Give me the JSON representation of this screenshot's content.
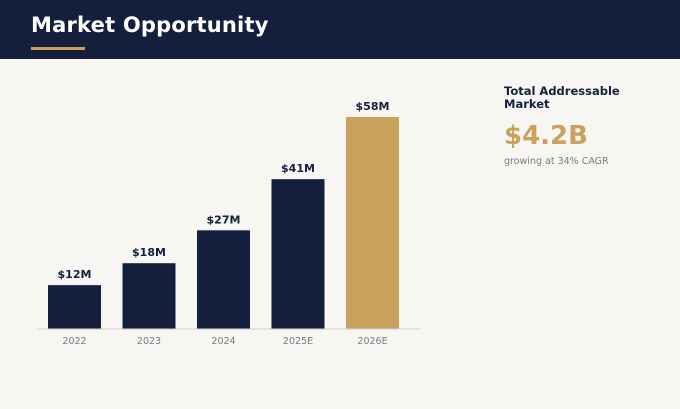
{
  "header": {
    "title": "Market Opportunity"
  },
  "chart_data": {
    "type": "bar",
    "categories": [
      "2022",
      "2023",
      "2024",
      "2025E",
      "2026E"
    ],
    "values": [
      12,
      18,
      27,
      41,
      58
    ],
    "data_labels": [
      "$12M",
      "$18M",
      "$27M",
      "$41M",
      "$58M"
    ],
    "unit": "$M",
    "title": "",
    "xlabel": "",
    "ylabel": "",
    "ylim": [
      0,
      58
    ],
    "grid": false,
    "legend": "none",
    "colors": {
      "default": "#131f3c",
      "highlight": "#c9a25c"
    },
    "highlight_index": 4
  },
  "summary": {
    "label": "Total Addressable Market",
    "value": "$4.2B",
    "note": "growing at 34% CAGR"
  }
}
